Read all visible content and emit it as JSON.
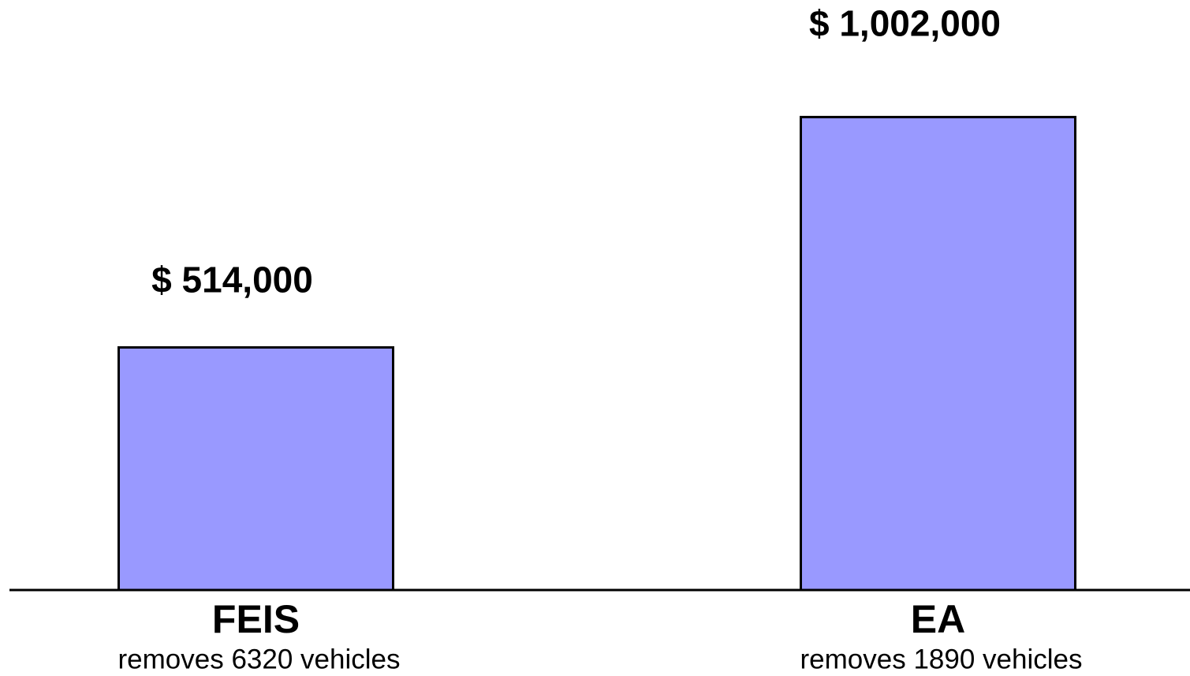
{
  "chart_data": {
    "type": "bar",
    "categories": [
      "FEIS",
      "EA"
    ],
    "category_notes": [
      "removes 6320 vehicles",
      "removes 1890 vehicles"
    ],
    "values": [
      514000,
      1002000
    ],
    "value_labels": [
      "$ 514,000",
      "$ 1,002,000"
    ],
    "color": "#9999ff",
    "ylim": [
      0,
      1250000
    ]
  }
}
